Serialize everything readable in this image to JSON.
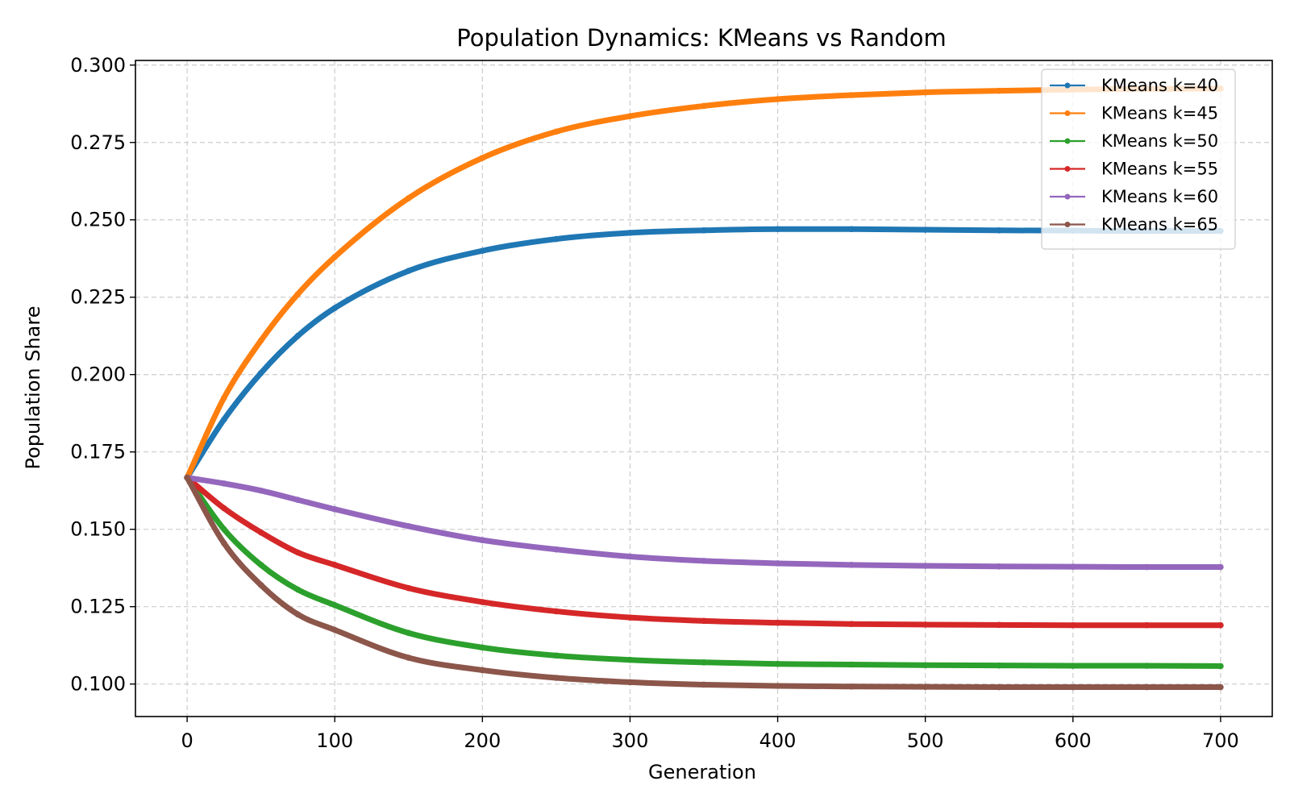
{
  "chart_data": {
    "type": "line",
    "title": "Population Dynamics: KMeans vs Random",
    "xlabel": "Generation",
    "ylabel": "Population Share",
    "xlim": [
      -35,
      735
    ],
    "ylim": [
      0.0895,
      0.3015
    ],
    "xticks": [
      0,
      100,
      200,
      300,
      400,
      500,
      600,
      700
    ],
    "xtick_labels": [
      "0",
      "100",
      "200",
      "300",
      "400",
      "500",
      "600",
      "700"
    ],
    "yticks": [
      0.1,
      0.125,
      0.15,
      0.175,
      0.2,
      0.225,
      0.25,
      0.275,
      0.3
    ],
    "ytick_labels": [
      "0.100",
      "0.125",
      "0.150",
      "0.175",
      "0.200",
      "0.225",
      "0.250",
      "0.275",
      "0.300"
    ],
    "grid": true,
    "legend_position": "top-right",
    "series": [
      {
        "name": "KMeans k=40",
        "color": "#1f77b4",
        "x": [
          0,
          25,
          50,
          75,
          100,
          150,
          200,
          250,
          300,
          350,
          400,
          450,
          500,
          550,
          600,
          650,
          700
        ],
        "y": [
          0.1667,
          0.1855,
          0.2005,
          0.2125,
          0.2215,
          0.2335,
          0.24,
          0.2438,
          0.2458,
          0.2466,
          0.247,
          0.247,
          0.2468,
          0.2466,
          0.2465,
          0.2464,
          0.2464
        ]
      },
      {
        "name": "KMeans k=45",
        "color": "#ff7f0e",
        "x": [
          0,
          25,
          50,
          75,
          100,
          150,
          200,
          250,
          300,
          350,
          400,
          450,
          500,
          550,
          600,
          650,
          700
        ],
        "y": [
          0.1667,
          0.1925,
          0.211,
          0.226,
          0.238,
          0.257,
          0.27,
          0.2785,
          0.2835,
          0.2868,
          0.289,
          0.2903,
          0.2912,
          0.2917,
          0.2921,
          0.2923,
          0.2924
        ]
      },
      {
        "name": "KMeans k=50",
        "color": "#2ca02c",
        "x": [
          0,
          25,
          50,
          75,
          100,
          150,
          200,
          250,
          300,
          350,
          400,
          450,
          500,
          550,
          600,
          650,
          700
        ],
        "y": [
          0.1667,
          0.15,
          0.1385,
          0.1305,
          0.1255,
          0.1165,
          0.1118,
          0.1092,
          0.1078,
          0.107,
          0.1065,
          0.1063,
          0.1061,
          0.106,
          0.1059,
          0.1059,
          0.1058
        ]
      },
      {
        "name": "KMeans k=55",
        "color": "#d62728",
        "x": [
          0,
          25,
          50,
          75,
          100,
          150,
          200,
          250,
          300,
          350,
          400,
          450,
          500,
          550,
          600,
          650,
          700
        ],
        "y": [
          0.1667,
          0.1568,
          0.149,
          0.1425,
          0.1385,
          0.131,
          0.1265,
          0.1235,
          0.1215,
          0.1204,
          0.1198,
          0.1194,
          0.1192,
          0.1191,
          0.119,
          0.119,
          0.119
        ]
      },
      {
        "name": "KMeans k=60",
        "color": "#9467bd",
        "x": [
          0,
          25,
          50,
          75,
          100,
          150,
          200,
          250,
          300,
          350,
          400,
          450,
          500,
          550,
          600,
          650,
          700
        ],
        "y": [
          0.1667,
          0.1648,
          0.1625,
          0.1595,
          0.1565,
          0.151,
          0.1465,
          0.1435,
          0.1412,
          0.1398,
          0.139,
          0.1385,
          0.1382,
          0.138,
          0.1379,
          0.1378,
          0.1378
        ]
      },
      {
        "name": "KMeans k=65",
        "color": "#8c564b",
        "x": [
          0,
          25,
          50,
          75,
          100,
          150,
          200,
          250,
          300,
          350,
          400,
          450,
          500,
          550,
          600,
          650,
          700
        ],
        "y": [
          0.1667,
          0.1455,
          0.132,
          0.1225,
          0.1175,
          0.1085,
          0.1045,
          0.102,
          0.1006,
          0.0998,
          0.0994,
          0.0992,
          0.0991,
          0.099,
          0.099,
          0.099,
          0.099
        ]
      }
    ]
  }
}
